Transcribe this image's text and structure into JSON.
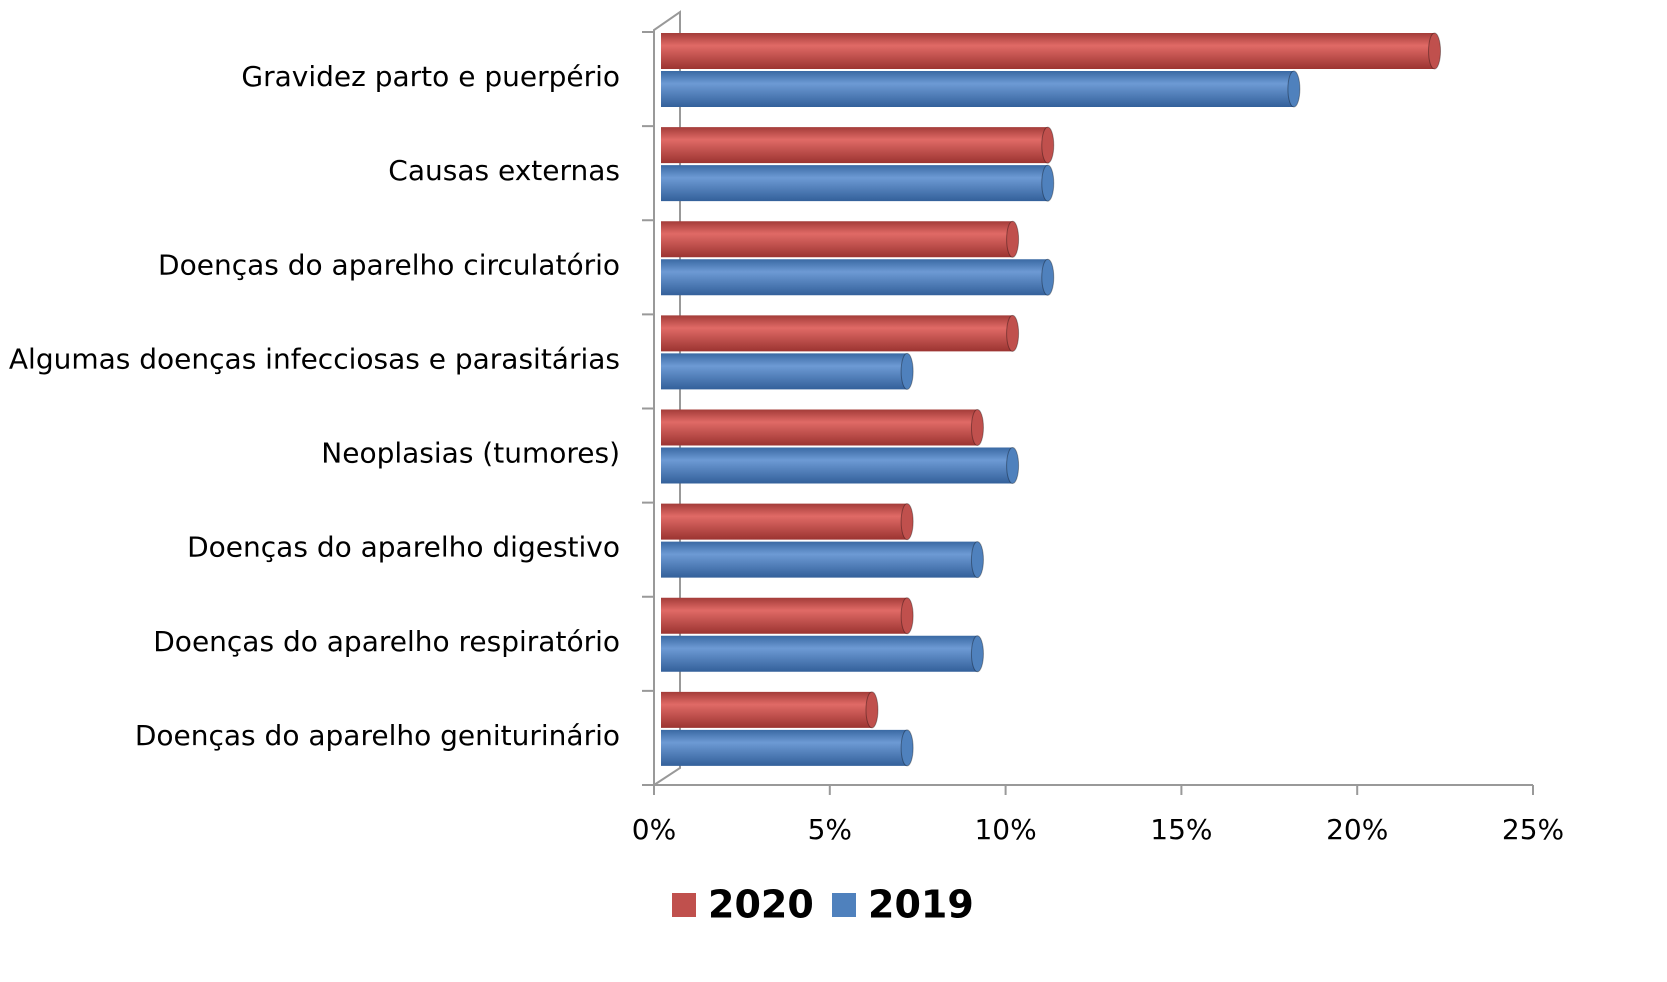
{
  "chart_data": {
    "type": "bar",
    "orientation": "horizontal",
    "categories": [
      "Gravidez parto e puerpério",
      "Causas externas",
      "Doenças do aparelho circulatório",
      "Algumas doenças infecciosas e parasitárias",
      "Neoplasias (tumores)",
      "Doenças do aparelho digestivo",
      "Doenças do aparelho respiratório",
      "Doenças do aparelho geniturinário"
    ],
    "series": [
      {
        "name": "2020",
        "color": "#c0504d",
        "values": [
          22,
          11,
          10,
          10,
          9,
          7,
          7,
          6
        ]
      },
      {
        "name": "2019",
        "color": "#4f81bd",
        "values": [
          18,
          11,
          11,
          7,
          10,
          9,
          9,
          7
        ]
      }
    ],
    "xlim": [
      0,
      25
    ],
    "xticks": [
      {
        "value": 0,
        "label": "0%"
      },
      {
        "value": 5,
        "label": "5%"
      },
      {
        "value": 10,
        "label": "10%"
      },
      {
        "value": 15,
        "label": "15%"
      },
      {
        "value": 20,
        "label": "20%"
      },
      {
        "value": 25,
        "label": "25%"
      }
    ],
    "legend": "bottom"
  }
}
